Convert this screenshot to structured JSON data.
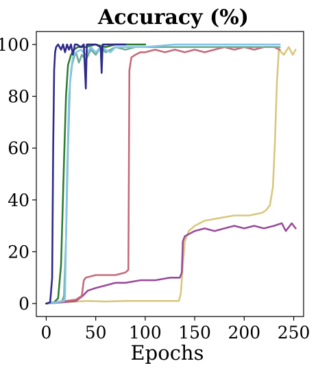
{
  "chart_data": {
    "type": "line",
    "title": "Accuracy (%)",
    "xlabel": "Epochs",
    "ylabel": "",
    "xlim": [
      -10,
      260
    ],
    "ylim": [
      -5,
      105
    ],
    "xticks": [
      0,
      50,
      100,
      150,
      200,
      250
    ],
    "yticks": [
      0,
      20,
      40,
      60,
      80,
      100
    ],
    "grid": false,
    "legend": "none",
    "series": [
      {
        "color": "#d9c77e",
        "points": [
          [
            0,
            0
          ],
          [
            20,
            0.5
          ],
          [
            40,
            1
          ],
          [
            60,
            0.8
          ],
          [
            80,
            1
          ],
          [
            100,
            1
          ],
          [
            120,
            1
          ],
          [
            134,
            1
          ],
          [
            136,
            4
          ],
          [
            138,
            15
          ],
          [
            140,
            24
          ],
          [
            144,
            28
          ],
          [
            150,
            30
          ],
          [
            160,
            32
          ],
          [
            175,
            33
          ],
          [
            190,
            34
          ],
          [
            205,
            34
          ],
          [
            218,
            35
          ],
          [
            222,
            36
          ],
          [
            226,
            38
          ],
          [
            229,
            45
          ],
          [
            231,
            62
          ],
          [
            233,
            85
          ],
          [
            235,
            98
          ],
          [
            240,
            96
          ],
          [
            245,
            99
          ],
          [
            249,
            96
          ],
          [
            252,
            98
          ]
        ]
      },
      {
        "color": "#9b4a9b",
        "points": [
          [
            0,
            0
          ],
          [
            15,
            0.5
          ],
          [
            30,
            1
          ],
          [
            37,
            3
          ],
          [
            42,
            5
          ],
          [
            50,
            6
          ],
          [
            60,
            7
          ],
          [
            70,
            8
          ],
          [
            80,
            8
          ],
          [
            95,
            9
          ],
          [
            110,
            9
          ],
          [
            125,
            10
          ],
          [
            135,
            10
          ],
          [
            137,
            12
          ],
          [
            138,
            24
          ],
          [
            140,
            26
          ],
          [
            145,
            27
          ],
          [
            150,
            28
          ],
          [
            160,
            29
          ],
          [
            170,
            28
          ],
          [
            180,
            29
          ],
          [
            190,
            30
          ],
          [
            200,
            29
          ],
          [
            210,
            30
          ],
          [
            220,
            29
          ],
          [
            230,
            30
          ],
          [
            238,
            31
          ],
          [
            242,
            28
          ],
          [
            248,
            31
          ],
          [
            252,
            29
          ]
        ]
      },
      {
        "color": "#c46b7a",
        "points": [
          [
            0,
            0
          ],
          [
            10,
            0.5
          ],
          [
            20,
            1
          ],
          [
            30,
            1.5
          ],
          [
            36,
            3
          ],
          [
            38,
            9
          ],
          [
            40,
            10
          ],
          [
            50,
            11
          ],
          [
            60,
            11
          ],
          [
            70,
            11
          ],
          [
            80,
            12
          ],
          [
            83,
            13
          ],
          [
            84,
            90
          ],
          [
            86,
            95
          ],
          [
            90,
            96
          ],
          [
            95,
            97
          ],
          [
            100,
            97
          ],
          [
            110,
            98
          ],
          [
            120,
            97
          ],
          [
            130,
            98
          ],
          [
            140,
            97
          ],
          [
            150,
            98
          ],
          [
            160,
            97
          ],
          [
            170,
            98
          ],
          [
            180,
            99
          ],
          [
            190,
            98
          ],
          [
            200,
            99
          ],
          [
            210,
            98
          ],
          [
            220,
            99
          ],
          [
            230,
            99
          ],
          [
            236,
            98
          ]
        ]
      },
      {
        "color": "#6aad9a",
        "points": [
          [
            0,
            0
          ],
          [
            10,
            0.5
          ],
          [
            16,
            1
          ],
          [
            18,
            3
          ],
          [
            20,
            25
          ],
          [
            22,
            60
          ],
          [
            24,
            85
          ],
          [
            26,
            92
          ],
          [
            28,
            95
          ],
          [
            30,
            97
          ],
          [
            33,
            93
          ],
          [
            36,
            96
          ],
          [
            40,
            94
          ],
          [
            45,
            98
          ],
          [
            50,
            96
          ],
          [
            55,
            99
          ],
          [
            60,
            97
          ],
          [
            70,
            99
          ],
          [
            80,
            98
          ],
          [
            90,
            99
          ],
          [
            100,
            99
          ],
          [
            120,
            99
          ],
          [
            150,
            99
          ],
          [
            180,
            99
          ],
          [
            200,
            99
          ],
          [
            220,
            99
          ],
          [
            236,
            99
          ]
        ]
      },
      {
        "color": "#2e7d32",
        "points": [
          [
            0,
            0
          ],
          [
            8,
            0.5
          ],
          [
            12,
            2
          ],
          [
            15,
            15
          ],
          [
            18,
            55
          ],
          [
            20,
            80
          ],
          [
            22,
            92
          ],
          [
            25,
            96
          ],
          [
            28,
            98
          ],
          [
            32,
            99
          ],
          [
            40,
            99
          ],
          [
            50,
            100
          ],
          [
            60,
            99
          ],
          [
            70,
            100
          ],
          [
            80,
            100
          ],
          [
            100,
            100
          ]
        ]
      },
      {
        "color": "#86c5e8",
        "points": [
          [
            0,
            0
          ],
          [
            10,
            0.5
          ],
          [
            18,
            1
          ],
          [
            19,
            2
          ],
          [
            21,
            50
          ],
          [
            23,
            80
          ],
          [
            25,
            90
          ],
          [
            27,
            95
          ],
          [
            30,
            97
          ],
          [
            35,
            98
          ],
          [
            40,
            96
          ],
          [
            45,
            99
          ],
          [
            50,
            97
          ],
          [
            55,
            99
          ],
          [
            60,
            98
          ],
          [
            65,
            97
          ],
          [
            70,
            99
          ],
          [
            80,
            99
          ],
          [
            100,
            99
          ],
          [
            130,
            100
          ],
          [
            160,
            100
          ],
          [
            190,
            100
          ],
          [
            210,
            100
          ],
          [
            236,
            100
          ]
        ]
      },
      {
        "color": "#2e2a8a",
        "points": [
          [
            0,
            0
          ],
          [
            4,
            0.5
          ],
          [
            6,
            10
          ],
          [
            7,
            60
          ],
          [
            8,
            90
          ],
          [
            9,
            97
          ],
          [
            10,
            99
          ],
          [
            12,
            100
          ],
          [
            15,
            98
          ],
          [
            17,
            100
          ],
          [
            19,
            97
          ],
          [
            21,
            100
          ],
          [
            23,
            98
          ],
          [
            25,
            100
          ],
          [
            27,
            96
          ],
          [
            29,
            100
          ],
          [
            31,
            100
          ],
          [
            35,
            99
          ],
          [
            38,
            100
          ],
          [
            40,
            83
          ],
          [
            41,
            100
          ],
          [
            45,
            100
          ],
          [
            50,
            100
          ],
          [
            55,
            99
          ],
          [
            56,
            89
          ],
          [
            57,
            100
          ],
          [
            60,
            100
          ],
          [
            70,
            100
          ],
          [
            80,
            100
          ]
        ]
      }
    ]
  }
}
